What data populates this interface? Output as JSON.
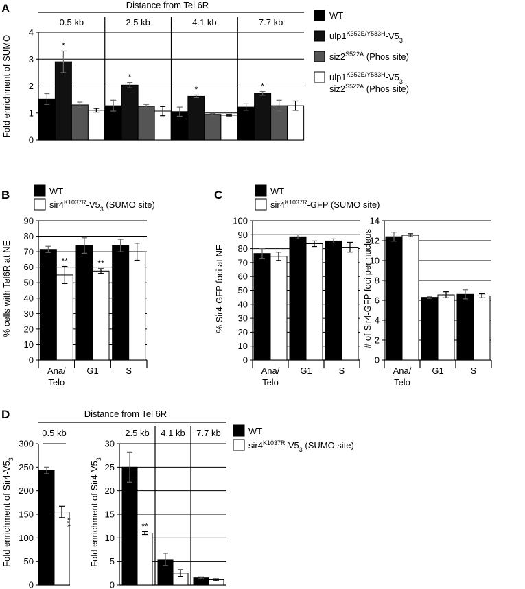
{
  "panels": [
    {
      "letter": "A",
      "header": "Distance from Tel 6R",
      "ylabel": "Fold enrichment of SUMO",
      "legend": [
        {
          "label": "WT",
          "color": "#000000"
        },
        {
          "label": "ulp1K352E/Y583H-V53",
          "color": "#111111"
        },
        {
          "label": "siz2S522A (Phos site)",
          "color": "#555555"
        },
        {
          "label": "ulp1K352E/Y583H-V53 siz2S522A (Phos site)",
          "color": "#ffffff"
        }
      ]
    },
    {
      "letter": "B",
      "ylabel": "% cells with Tel6R at NE",
      "legend": [
        {
          "label": "WT",
          "color": "#000000"
        },
        {
          "label": "sir4K1037R-V53 (SUMO site)",
          "color": "#ffffff"
        }
      ]
    },
    {
      "letter": "C",
      "ylabel": "% Sir4-GFP foci at NE",
      "ylabel2": "# of Sir4-GFP foci per nucleus",
      "legend": [
        {
          "label": "WT",
          "color": "#000000"
        },
        {
          "label": "sir4K1037R-GFP (SUMO site)",
          "color": "#ffffff"
        }
      ]
    },
    {
      "letter": "D",
      "header": "Distance from Tel 6R",
      "ylabel": "Fold enrichment of Sir4-V53",
      "legend": [
        {
          "label": "WT",
          "color": "#000000"
        },
        {
          "label": "sir4K1037R-V53 (SUMO site)",
          "color": "#ffffff"
        }
      ]
    }
  ],
  "chart_data": [
    {
      "id": "A",
      "type": "bar",
      "ylabel": "Fold enrichment of SUMO",
      "ylim": [
        0,
        4
      ],
      "yticks": [
        0,
        1,
        2,
        3,
        4
      ],
      "grid": true,
      "categories": [
        "0.5 kb",
        "2.5 kb",
        "4.1 kb",
        "7.7 kb"
      ],
      "series": [
        {
          "name": "WT",
          "values": [
            1.52,
            1.27,
            1.05,
            1.22
          ],
          "errors": [
            0.2,
            0.2,
            0.17,
            0.12
          ]
        },
        {
          "name": "ulp1K352E/Y583H-V53",
          "values": [
            2.9,
            2.03,
            1.62,
            1.73
          ],
          "errors": [
            0.4,
            0.1,
            0.05,
            0.07
          ]
        },
        {
          "name": "siz2S522A (Phos site)",
          "values": [
            1.3,
            1.25,
            0.95,
            1.27
          ],
          "errors": [
            0.1,
            0.07,
            0.03,
            0.2
          ]
        },
        {
          "name": "ulp1K352E/Y583H-V53 siz2S522A (Phos site)",
          "values": [
            1.1,
            1.07,
            0.92,
            1.27
          ],
          "errors": [
            0.07,
            0.17,
            0.03,
            0.17
          ]
        }
      ],
      "significance": [
        {
          "category": "0.5 kb",
          "label": "*"
        },
        {
          "category": "2.5 kb",
          "label": "*"
        },
        {
          "category": "4.1 kb",
          "label": "*"
        },
        {
          "category": "7.7 kb",
          "label": "*"
        }
      ]
    },
    {
      "id": "B",
      "type": "bar",
      "ylabel": "% cells with Tel6R at NE",
      "ylim": [
        0,
        90
      ],
      "yticks": [
        0,
        10,
        20,
        30,
        40,
        50,
        60,
        70,
        80,
        90
      ],
      "grid": true,
      "categories": [
        "Ana/ Telo",
        "G1",
        "S"
      ],
      "series": [
        {
          "name": "WT",
          "values": [
            71.5,
            74,
            74
          ],
          "errors": [
            2,
            5,
            4
          ]
        },
        {
          "name": "sir4K1037R-V53 (SUMO site)",
          "values": [
            55,
            57.5,
            70
          ],
          "errors": [
            5.5,
            1.5,
            5.5
          ]
        }
      ],
      "significance": [
        {
          "category": "Ana/ Telo",
          "label": "**"
        },
        {
          "category": "G1",
          "label": "**"
        }
      ]
    },
    {
      "id": "C1",
      "type": "bar",
      "ylabel": "% Sir4-GFP foci at NE",
      "ylim": [
        0,
        100
      ],
      "yticks": [
        0,
        10,
        20,
        30,
        40,
        50,
        60,
        70,
        80,
        90,
        100
      ],
      "grid": true,
      "categories": [
        "Ana/ Telo",
        "G1",
        "S"
      ],
      "series": [
        {
          "name": "WT",
          "values": [
            76.5,
            88.5,
            85.5
          ],
          "errors": [
            3.5,
            1.5,
            1.5
          ]
        },
        {
          "name": "sir4K1037R-GFP (SUMO site)",
          "values": [
            74.5,
            83.5,
            81
          ],
          "errors": [
            3,
            2,
            3.5
          ]
        }
      ]
    },
    {
      "id": "C2",
      "type": "bar",
      "ylabel": "# of Sir4-GFP foci per nucleus",
      "ylim": [
        0,
        14
      ],
      "yticks": [
        0,
        2,
        4,
        6,
        8,
        10,
        12,
        14
      ],
      "grid": true,
      "categories": [
        "Ana/ Telo",
        "G1",
        "S"
      ],
      "series": [
        {
          "name": "WT",
          "values": [
            12.4,
            6.3,
            6.6
          ],
          "errors": [
            0.45,
            0.1,
            0.45
          ]
        },
        {
          "name": "sir4K1037R-GFP (SUMO site)",
          "values": [
            12.55,
            6.55,
            6.45
          ],
          "errors": [
            0.15,
            0.3,
            0.2
          ]
        }
      ]
    },
    {
      "id": "D1",
      "type": "bar",
      "ylabel": "Fold enrichment of Sir4-V53",
      "ylim": [
        0,
        300
      ],
      "yticks": [
        0,
        50,
        100,
        150,
        200,
        250,
        300
      ],
      "grid": false,
      "categories": [
        "0.5 kb"
      ],
      "series": [
        {
          "name": "WT",
          "values": [
            243
          ],
          "errors": [
            7
          ]
        },
        {
          "name": "sir4K1037R-V53 (SUMO site)",
          "values": [
            155
          ],
          "errors": [
            12
          ]
        }
      ],
      "significance": [
        {
          "category": "0.5 kb",
          "label": "***"
        }
      ]
    },
    {
      "id": "D2",
      "type": "bar",
      "ylabel": "Fold enrichment of Sir4-V53",
      "ylim": [
        0,
        30
      ],
      "yticks": [
        0,
        5,
        10,
        15,
        20,
        25,
        30
      ],
      "grid": true,
      "categories": [
        "2.5 kb",
        "4.1 kb",
        "7.7 kb"
      ],
      "series": [
        {
          "name": "WT",
          "values": [
            25,
            5.4,
            1.5
          ],
          "errors": [
            3.2,
            1.3,
            0.2
          ]
        },
        {
          "name": "sir4K1037R-V53 (SUMO site)",
          "values": [
            11,
            2.5,
            1.1
          ],
          "errors": [
            0.3,
            0.7,
            0.2
          ]
        }
      ],
      "significance": [
        {
          "category": "2.5 kb",
          "label": "**"
        }
      ]
    }
  ]
}
